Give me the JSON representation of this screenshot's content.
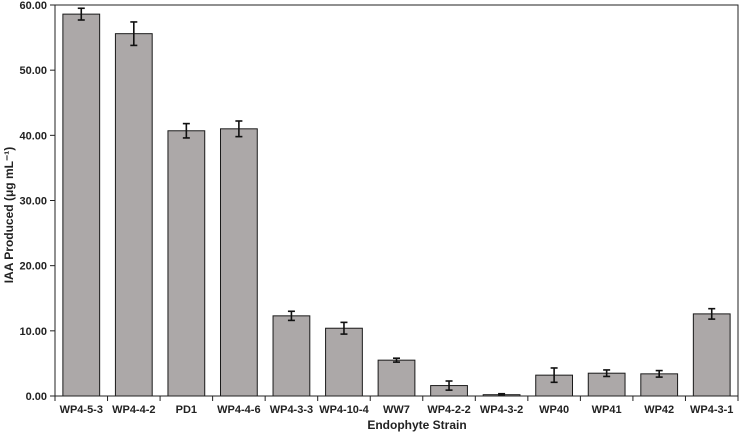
{
  "chart_data": {
    "type": "bar",
    "xlabel": "Endophyte Strain",
    "ylabel": "IAA Produced (μg mL⁻¹)",
    "ylim": [
      0,
      60
    ],
    "yticks": [
      0,
      10,
      20,
      30,
      40,
      50,
      60
    ],
    "ytick_labels": [
      "0.00",
      "10.00",
      "20.00",
      "30.00",
      "40.00",
      "50.00",
      "60.00"
    ],
    "grid": false,
    "categories": [
      "WP4-5-3",
      "WP4-4-2",
      "PD1",
      "WP4-4-6",
      "WP4-3-3",
      "WP4-10-4",
      "WW7",
      "WP4-2-2",
      "WP4-3-2",
      "WP40",
      "WP41",
      "WP42",
      "WP4-3-1"
    ],
    "values": [
      58.6,
      55.6,
      40.7,
      41.0,
      12.3,
      10.4,
      5.5,
      1.6,
      0.2,
      3.2,
      3.5,
      3.4,
      12.6
    ],
    "errors": [
      0.9,
      1.8,
      1.1,
      1.2,
      0.7,
      0.9,
      0.3,
      0.7,
      0.15,
      1.1,
      0.5,
      0.5,
      0.8
    ],
    "colors": {
      "bar_fill": "#aca8a8",
      "bar_stroke": "#1a1a1a",
      "error": "#111111",
      "axis": "#222222"
    }
  }
}
